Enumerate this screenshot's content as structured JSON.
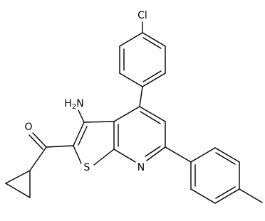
{
  "atoms": {
    "chlorine": "Cl",
    "amine": {
      "hydrogen": "H",
      "count": "2",
      "nitrogen": "N"
    },
    "oxygen": "O",
    "sulfur": "S",
    "pyridine_nitrogen": "N"
  }
}
